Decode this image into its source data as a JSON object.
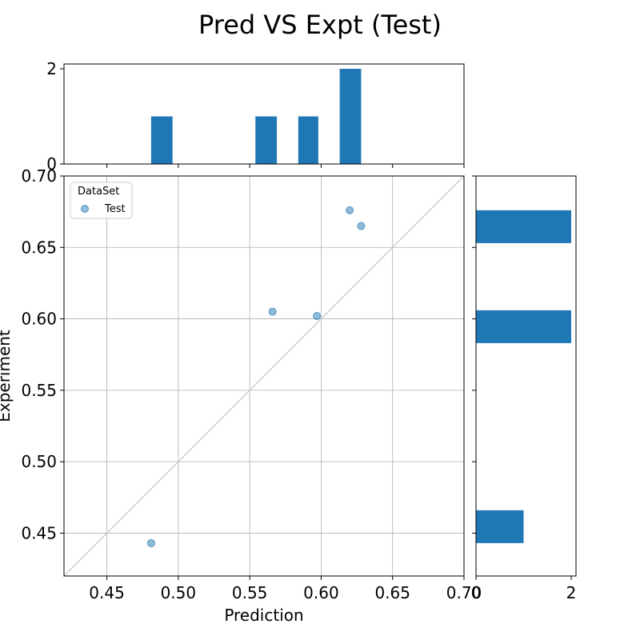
{
  "chart_data": {
    "type": "scatter",
    "title": "Pred VS Expt (Test)",
    "xlabel": "Prediction",
    "ylabel": "Experiment",
    "xlim": [
      0.42,
      0.7
    ],
    "ylim": [
      0.42,
      0.7
    ],
    "x_ticks": [
      "0.45",
      "0.50",
      "0.55",
      "0.60",
      "0.65",
      "0.70"
    ],
    "y_ticks": [
      "0.45",
      "0.50",
      "0.55",
      "0.60",
      "0.65",
      "0.70"
    ],
    "grid": true,
    "identity_line": true,
    "legend": {
      "title": "DataSet",
      "entries": [
        "Test"
      ],
      "placement": "top-left"
    },
    "series": [
      {
        "name": "Test",
        "color": "#1f77b4",
        "points": [
          {
            "x": 0.481,
            "y": 0.443
          },
          {
            "x": 0.566,
            "y": 0.605
          },
          {
            "x": 0.597,
            "y": 0.602
          },
          {
            "x": 0.62,
            "y": 0.676
          },
          {
            "x": 0.628,
            "y": 0.665
          }
        ]
      }
    ],
    "top_histogram": {
      "axis": "Prediction",
      "bins": [
        {
          "start": 0.481,
          "end": 0.496,
          "count": 1
        },
        {
          "start": 0.554,
          "end": 0.569,
          "count": 1
        },
        {
          "start": 0.584,
          "end": 0.598,
          "count": 1
        },
        {
          "start": 0.613,
          "end": 0.628,
          "count": 2
        }
      ],
      "count_ticks": [
        "0",
        "2"
      ],
      "count_max": 2
    },
    "right_histogram": {
      "axis": "Experiment",
      "bins": [
        {
          "start": 0.443,
          "end": 0.466,
          "count": 1
        },
        {
          "start": 0.583,
          "end": 0.606,
          "count": 2
        },
        {
          "start": 0.653,
          "end": 0.676,
          "count": 2
        }
      ],
      "count_ticks": [
        "0",
        "2"
      ],
      "count_max": 2
    },
    "bar_color": "#1f77b4"
  }
}
